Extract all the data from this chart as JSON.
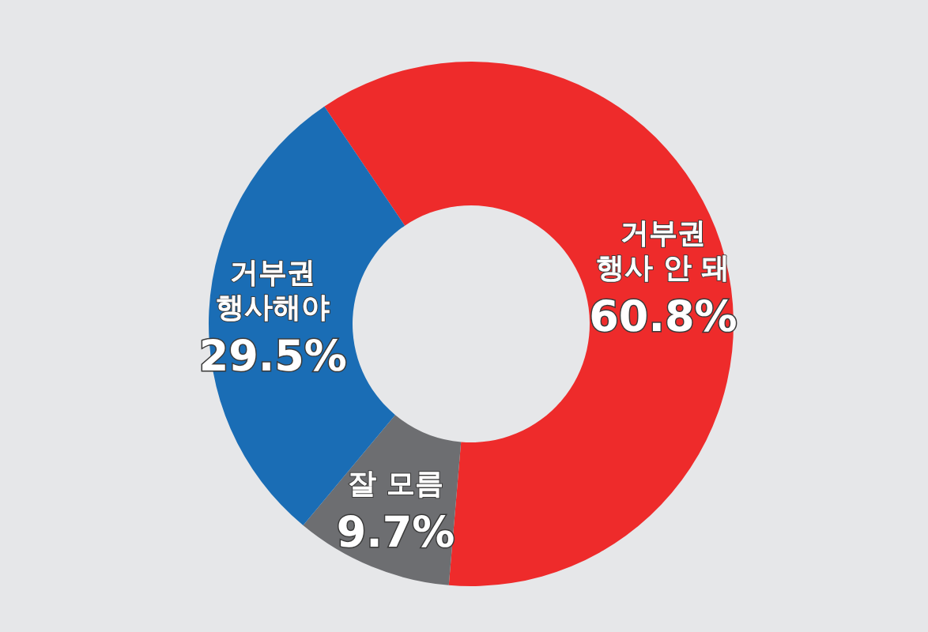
{
  "chart_data": {
    "type": "donut",
    "categories": [
      "거부권\n행사 안 돼",
      "잘 모름",
      "거부권\n행사해야"
    ],
    "values": [
      60.8,
      9.7,
      29.5
    ],
    "colors": [
      "#ee2b2b",
      "#6d6e71",
      "#1a6db5"
    ],
    "value_labels": [
      "60.8%",
      "9.7%",
      "29.5%"
    ],
    "legend": false
  }
}
